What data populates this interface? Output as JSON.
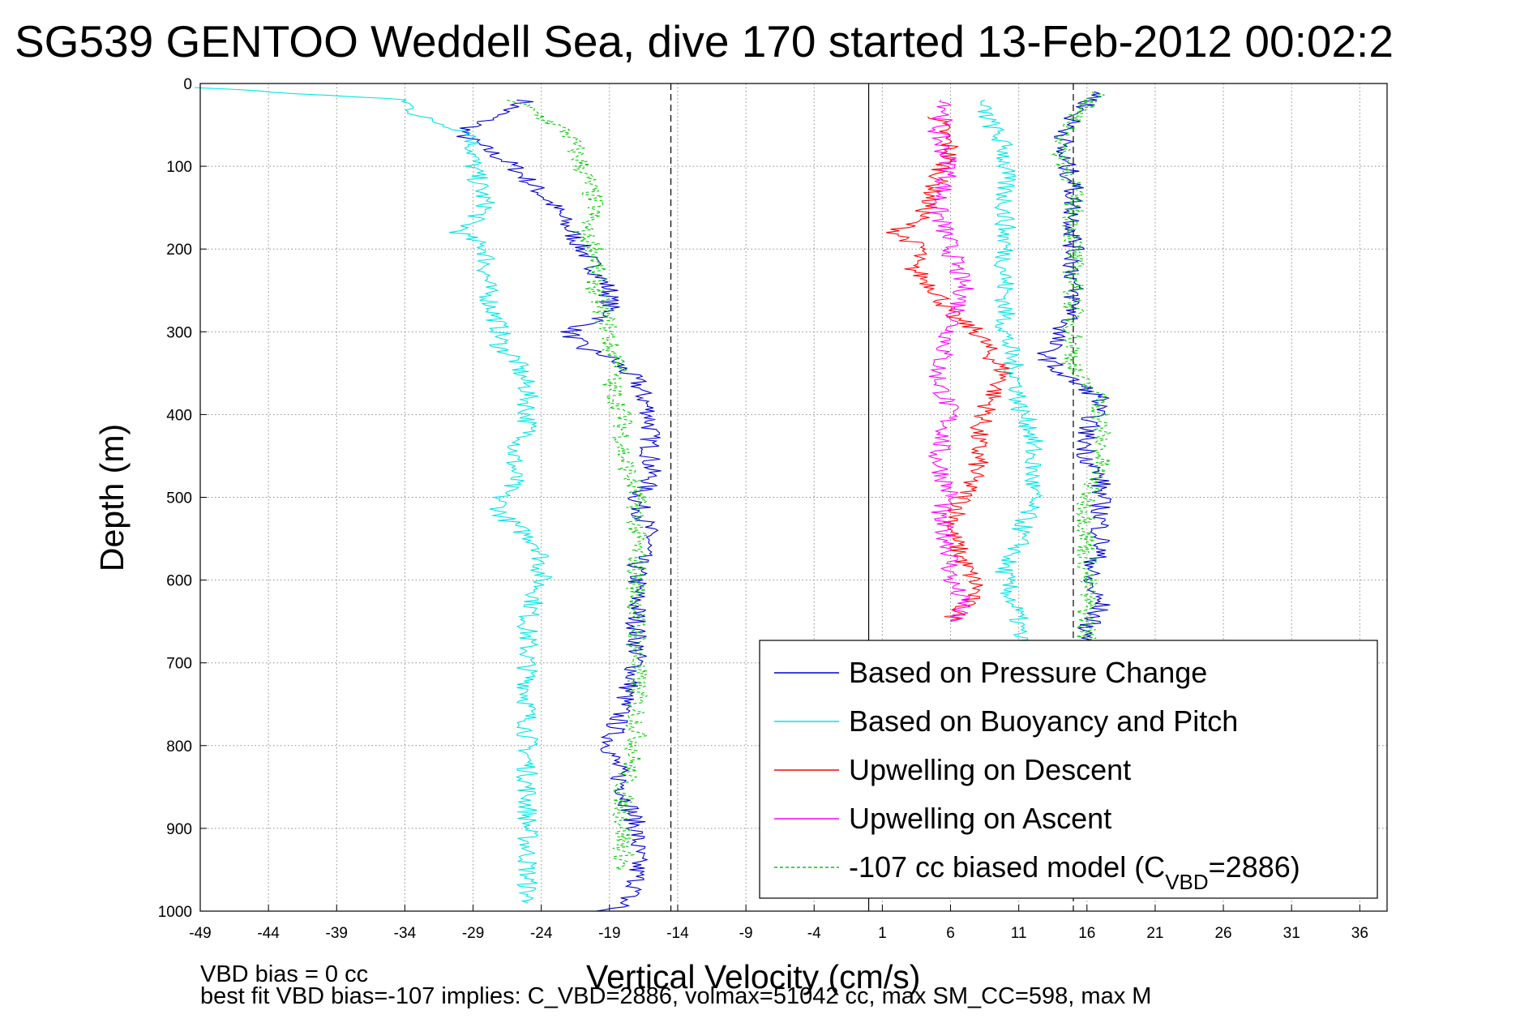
{
  "chart_data": {
    "type": "line",
    "title": "SG539 GENTOO Weddell Sea, dive 170 started 13-Feb-2012 00:02:2",
    "xlabel": "Vertical Velocity (cm/s)",
    "ylabel": "Depth (m)",
    "xlim": [
      -49,
      38
    ],
    "ylim": [
      1000,
      0
    ],
    "y_reversed": true,
    "grid": true,
    "legend_placement": "lower-right",
    "x_ticks": [
      "-49",
      "-44",
      "-39",
      "-34",
      "-29",
      "-24",
      "-19",
      "-14",
      "-9",
      "-4",
      "1",
      "6",
      "11",
      "16",
      "21",
      "26",
      "31",
      "36"
    ],
    "y_ticks": [
      "0",
      "100",
      "200",
      "300",
      "400",
      "500",
      "600",
      "700",
      "800",
      "900",
      "1000"
    ],
    "reference_lines": [
      {
        "x": -14.5,
        "style": "dashed"
      },
      {
        "x": 0,
        "style": "solid"
      },
      {
        "x": 15,
        "style": "dashed"
      }
    ],
    "series": [
      {
        "name": "Based on Pressure Change",
        "color": "#0000cc",
        "style": "solid",
        "x": [
          -25,
          -30,
          -26,
          -23,
          -21,
          -19,
          -19,
          -22,
          -21,
          -19,
          -17,
          -16,
          -16,
          -16,
          -17,
          -16,
          -17,
          -17,
          -17,
          -17,
          -18,
          -19,
          -18,
          -17,
          -17,
          -17,
          -18,
          -18,
          -20
        ],
        "y": [
          20,
          60,
          100,
          150,
          200,
          250,
          280,
          300,
          320,
          330,
          360,
          400,
          450,
          480,
          500,
          550,
          580,
          600,
          650,
          700,
          750,
          800,
          850,
          900,
          950,
          970,
          990,
          995,
          1000
        ]
      },
      {
        "name": "Based on Buoyancy and Pitch",
        "color": "#00e5e5",
        "style": "solid",
        "x": [
          -49,
          -34,
          -33,
          -29,
          -29,
          -28,
          -30,
          -28,
          -28,
          -27,
          -27,
          -26,
          -25,
          -25,
          -26,
          -26,
          -27,
          -27,
          -24,
          -24,
          -24,
          -25,
          -25,
          -25,
          -25,
          -25,
          -25,
          -25
        ],
        "y": [
          5,
          20,
          40,
          60,
          100,
          150,
          180,
          200,
          250,
          300,
          320,
          330,
          370,
          430,
          440,
          480,
          500,
          520,
          560,
          580,
          600,
          650,
          700,
          750,
          800,
          850,
          900,
          990
        ]
      },
      {
        "name": "Upwelling on Descent",
        "color": "#ff0000",
        "style": "solid",
        "x": [
          5,
          6,
          5,
          4,
          2,
          4,
          3,
          5,
          6,
          8,
          9,
          10,
          9,
          8,
          8,
          7,
          6,
          7,
          8,
          6
        ],
        "y": [
          40,
          80,
          120,
          160,
          180,
          200,
          220,
          250,
          280,
          300,
          330,
          350,
          380,
          420,
          460,
          500,
          540,
          580,
          610,
          650
        ]
      },
      {
        "name": "Upwelling on Ascent",
        "color": "#ff00ff",
        "style": "solid",
        "x": [
          6,
          5,
          6,
          5,
          6,
          7,
          6,
          5,
          6,
          5,
          6,
          5,
          6,
          6,
          7,
          6
        ],
        "y": [
          20,
          60,
          100,
          150,
          200,
          250,
          300,
          350,
          400,
          450,
          500,
          520,
          560,
          600,
          630,
          650
        ]
      },
      {
        "name": "-107 cc biased model (C_VBD=2886)",
        "color": "#00cc00",
        "style": "dashed",
        "x": [
          -26,
          -22,
          -21,
          -20,
          -21,
          -20,
          -20,
          -19,
          -19,
          -18,
          -19,
          -18,
          -18,
          -17,
          -17,
          -17,
          -17,
          -17,
          -17,
          -17,
          -18,
          -18,
          -18
        ],
        "y": [
          20,
          60,
          100,
          150,
          180,
          200,
          250,
          300,
          320,
          340,
          360,
          400,
          450,
          500,
          550,
          600,
          650,
          700,
          750,
          800,
          850,
          900,
          950
        ]
      },
      {
        "name": "",
        "color": "#00e5e5",
        "style": "solid",
        "x": [
          8,
          9,
          10,
          10,
          10,
          10,
          10,
          11,
          11,
          12,
          12,
          12,
          11,
          11,
          10,
          10,
          11,
          11,
          10,
          10
        ],
        "y": [
          20,
          50,
          80,
          150,
          200,
          250,
          300,
          370,
          390,
          420,
          450,
          500,
          550,
          560,
          580,
          600,
          650,
          700,
          750,
          800
        ]
      },
      {
        "name": "",
        "color": "#0000cc",
        "style": "solid",
        "x": [
          17,
          15,
          14,
          15,
          15,
          15,
          15,
          15,
          14,
          13,
          14,
          17,
          16,
          16,
          17,
          17,
          17,
          16,
          17,
          16,
          16
        ],
        "y": [
          10,
          40,
          80,
          120,
          150,
          200,
          250,
          280,
          300,
          330,
          350,
          380,
          420,
          450,
          480,
          520,
          560,
          600,
          630,
          660,
          700
        ]
      },
      {
        "name": "",
        "color": "#00cc00",
        "style": "dashed",
        "x": [
          17,
          15,
          14,
          15,
          15,
          15,
          15,
          15,
          15,
          17,
          17,
          17,
          16,
          16,
          16,
          16,
          16
        ],
        "y": [
          10,
          40,
          80,
          120,
          150,
          200,
          250,
          300,
          350,
          380,
          420,
          460,
          500,
          550,
          600,
          650,
          700
        ]
      }
    ]
  },
  "notes": {
    "line1": "VBD bias = 0 cc",
    "line2": "best fit VBD bias=-107 implies: C_VBD=2886, volmax=51042 cc, max SM_CC=598, max M"
  },
  "legend": {
    "entries": [
      {
        "label": "Based on Pressure Change",
        "color": "#0000cc",
        "style": "solid"
      },
      {
        "label": "Based on Buoyancy and Pitch",
        "color": "#00e5e5",
        "style": "solid"
      },
      {
        "label": "Upwelling on Descent",
        "color": "#ff0000",
        "style": "solid"
      },
      {
        "label": "Upwelling on Ascent",
        "color": "#ff00ff",
        "style": "solid"
      },
      {
        "label": "-107 cc biased model (C",
        "sub": "VBD",
        "after": "=2886)",
        "color": "#00cc00",
        "style": "dashed"
      }
    ]
  }
}
